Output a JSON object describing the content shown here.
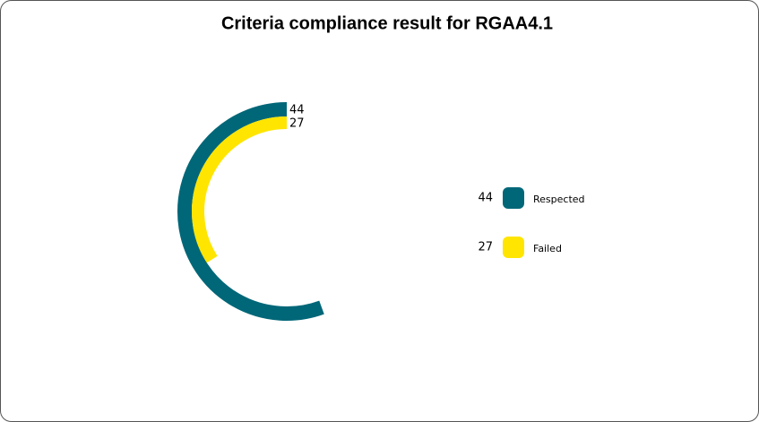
{
  "chart_data": {
    "type": "radialBar",
    "title": "Criteria compliance result for RGAA4.1",
    "categories": [
      "Respected",
      "Failed"
    ],
    "values": [
      44,
      27
    ],
    "colors": [
      "#006778",
      "#ffe500"
    ]
  }
}
